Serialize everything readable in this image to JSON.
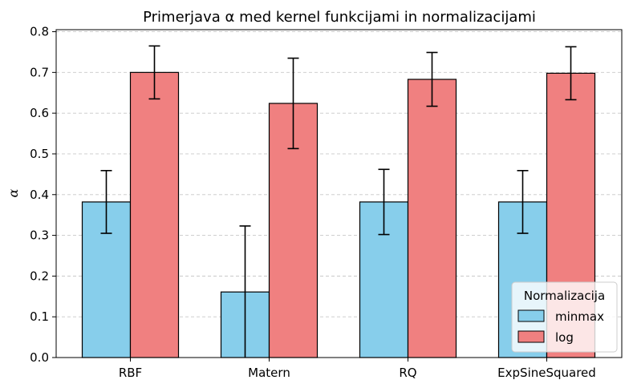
{
  "chart_data": {
    "type": "bar",
    "title": "Primerjava α med kernel funkcijami in normalizacijami",
    "xlabel": "",
    "ylabel": "α",
    "categories": [
      "RBF",
      "Matern",
      "RQ",
      "ExpSineSquared"
    ],
    "series": [
      {
        "name": "minmax",
        "color": "#87ceeb",
        "values": [
          0.382,
          0.161,
          0.382,
          0.382
        ],
        "errors": [
          0.077,
          0.162,
          0.08,
          0.077
        ]
      },
      {
        "name": "log",
        "color": "#f08080",
        "values": [
          0.7,
          0.624,
          0.683,
          0.698
        ],
        "errors": [
          0.065,
          0.111,
          0.066,
          0.065
        ]
      }
    ],
    "ylim": [
      0,
      0.805
    ],
    "yticks": [
      "0.0",
      "0.1",
      "0.2",
      "0.3",
      "0.4",
      "0.5",
      "0.6",
      "0.7",
      "0.8"
    ],
    "grid": "y-dashed",
    "legend": {
      "title": "Normalizacija",
      "placement": "lower-right"
    }
  }
}
